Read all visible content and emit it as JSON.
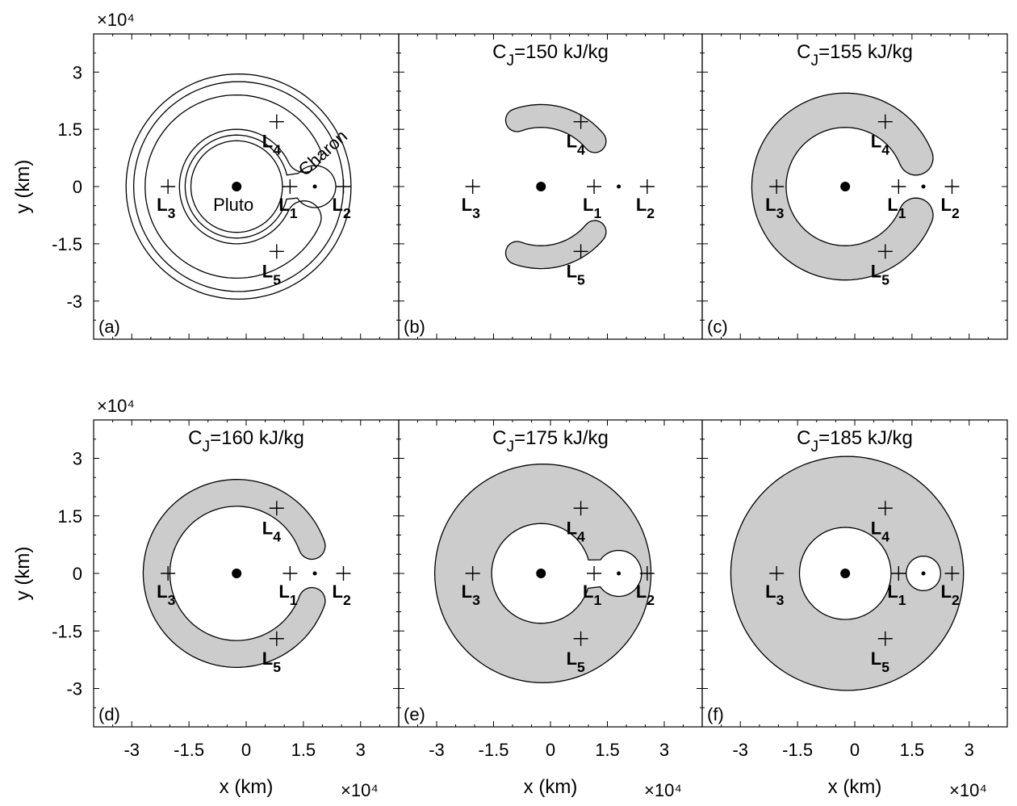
{
  "chart_data": {
    "type": "contour",
    "layout": "2x3 grid of panels",
    "grid": false,
    "axes": {
      "xlabel": "x (km)",
      "ylabel": "y (km)",
      "x_multiplier": "×10⁴",
      "y_multiplier": "×10⁴",
      "xlim": [
        -4,
        4
      ],
      "ylim": [
        -4,
        4
      ],
      "xticks": [
        -3,
        -1.5,
        0,
        1.5,
        3
      ],
      "yticks": [
        -3,
        -1.5,
        0,
        1.5,
        3
      ],
      "xtick_labels": [
        "-3",
        "-1.5",
        "0",
        "1.5",
        "3"
      ],
      "ytick_labels": [
        "3",
        "1.5",
        "0",
        "-1.5",
        "-3"
      ]
    },
    "bodies": [
      {
        "name": "Pluto",
        "x": -0.25,
        "y": 0
      },
      {
        "name": "Charon",
        "x": 1.8,
        "y": 0
      }
    ],
    "lagrange_points": [
      {
        "name": "L",
        "sub": "1",
        "x": 1.15,
        "y": 0
      },
      {
        "name": "L",
        "sub": "2",
        "x": 2.55,
        "y": 0
      },
      {
        "name": "L",
        "sub": "3",
        "x": -2.05,
        "y": 0
      },
      {
        "name": "L",
        "sub": "4",
        "x": 0.8,
        "y": 1.7
      },
      {
        "name": "L",
        "sub": "5",
        "x": 0.8,
        "y": -1.7
      }
    ],
    "panels": [
      {
        "tag": "(a)",
        "title": "",
        "c_jacobi": null,
        "show_body_labels": true
      },
      {
        "tag": "(b)",
        "title": "C",
        "title_sub": "J",
        "title_rest": "=150 kJ/kg",
        "c_jacobi": 150
      },
      {
        "tag": "(c)",
        "title": "C",
        "title_sub": "J",
        "title_rest": "=155 kJ/kg",
        "c_jacobi": 155
      },
      {
        "tag": "(d)",
        "title": "C",
        "title_sub": "J",
        "title_rest": "=160 kJ/kg",
        "c_jacobi": 160
      },
      {
        "tag": "(e)",
        "title": "C",
        "title_sub": "J",
        "title_rest": "=175 kJ/kg",
        "c_jacobi": 175
      },
      {
        "tag": "(f)",
        "title": "C",
        "title_sub": "J",
        "title_rest": "=185 kJ/kg",
        "c_jacobi": 185
      }
    ],
    "fill_color": "#cccccc",
    "line_color": "#000000"
  }
}
